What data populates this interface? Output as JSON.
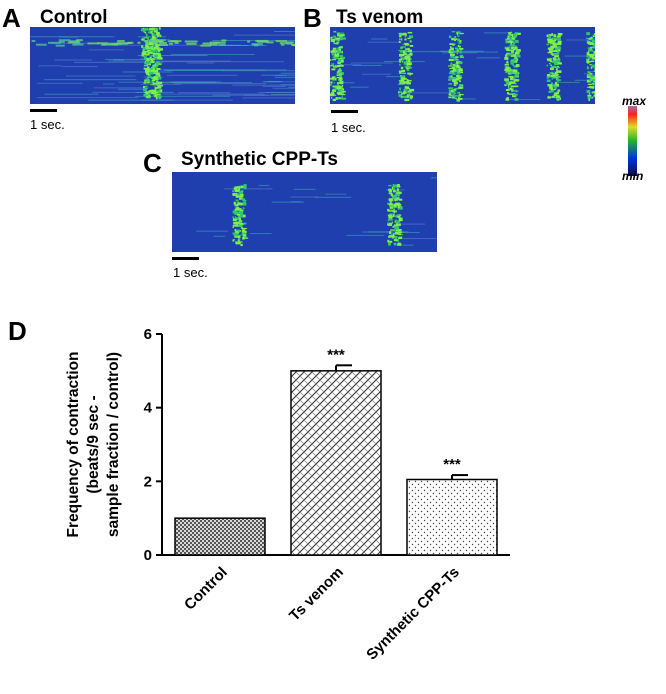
{
  "panels": {
    "a": {
      "letter": "A",
      "title": "Control",
      "scale_label": "1 sec."
    },
    "b": {
      "letter": "B",
      "title": "Ts venom",
      "scale_label": "1 sec."
    },
    "c": {
      "letter": "C",
      "title": "Synthetic CPP-Ts",
      "scale_label": "1 sec."
    },
    "d": {
      "letter": "D"
    }
  },
  "colorscale": {
    "max_label": "max",
    "min_label": "min"
  },
  "colors": {
    "kymo_background": "#1f3fae",
    "kymo_signal": "#7df04a",
    "kymo_signal_edge": "#2fc86e"
  },
  "chart_data": {
    "type": "bar",
    "categories": [
      "Control",
      "Ts venom",
      "Synthetic CPP-Ts"
    ],
    "values": [
      1.0,
      5.0,
      2.05
    ],
    "errors": [
      0,
      0.15,
      0.12
    ],
    "significance": [
      "",
      "***",
      "***"
    ],
    "patterns": [
      "crosshatch",
      "diagonal-hatch",
      "dots"
    ],
    "ylabel_lines": [
      "Frequency of contraction",
      "(beats/9 sec -",
      "sample fraction / control)"
    ],
    "xlabel": "",
    "ylim": [
      0,
      6
    ],
    "yticks": [
      0,
      2,
      4,
      6
    ],
    "grid": false,
    "legend": "none"
  }
}
